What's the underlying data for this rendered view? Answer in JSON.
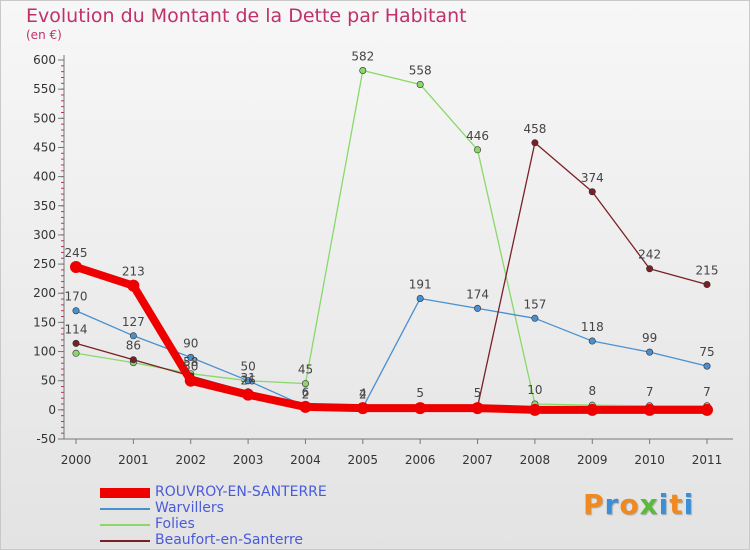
{
  "header": {
    "title": "Evolution du Montant de la Dette par Habitant",
    "unit": "(en €)"
  },
  "chart_data": {
    "type": "line",
    "title": "Evolution du Montant de la Dette par Habitant",
    "subtitle": "(en €)",
    "xlabel": "",
    "ylabel": "",
    "x": [
      "2000",
      "2001",
      "2002",
      "2003",
      "2004",
      "2005",
      "2006",
      "2007",
      "2008",
      "2009",
      "2010",
      "2011"
    ],
    "ylim": [
      -50,
      600
    ],
    "yticks": [
      -50,
      0,
      50,
      100,
      150,
      200,
      250,
      300,
      350,
      400,
      450,
      500,
      550,
      600
    ],
    "grid": false,
    "legend_position": "bottom-left",
    "series": [
      {
        "name": "ROUVROY-EN-SANTERRE",
        "color": "#ee0000",
        "values": [
          245,
          213,
          50,
          26,
          5,
          3,
          3,
          3,
          0,
          0,
          0,
          0
        ],
        "labels": [
          "245",
          "213",
          "50",
          "26",
          "",
          "",
          "",
          "",
          "",
          "",
          "",
          ""
        ]
      },
      {
        "name": "Warvillers",
        "color": "#4a90d0",
        "values": [
          170,
          127,
          90,
          50,
          6,
          4,
          191,
          174,
          157,
          118,
          99,
          75
        ],
        "labels": [
          "170",
          "127",
          "90",
          "50",
          "6",
          "4",
          "191",
          "174",
          "157",
          "118",
          "99",
          "75"
        ]
      },
      {
        "name": "Folies",
        "color": "#8ad86a",
        "values": [
          97,
          81,
          62,
          50,
          45,
          582,
          558,
          446,
          10,
          8,
          7,
          7
        ],
        "labels": [
          "",
          "",
          "",
          "",
          "45",
          "582",
          "558",
          "446",
          "10",
          "8",
          "7",
          "7"
        ]
      },
      {
        "name": "Beaufort-en-Santerre",
        "color": "#7a2025",
        "values": [
          114,
          86,
          58,
          31,
          2,
          2,
          5,
          5,
          458,
          374,
          242,
          215
        ],
        "labels": [
          "114",
          "86",
          "58",
          "31",
          "2",
          "2",
          "5",
          "5",
          "458",
          "374",
          "242",
          "215"
        ]
      }
    ]
  },
  "logo": {
    "text": "Proxiti",
    "colors": [
      "#f08a20",
      "#3a8fd8",
      "#f08a20",
      "#5aba3a",
      "#3a8fd8",
      "#f08a20",
      "#3a8fd8"
    ]
  }
}
